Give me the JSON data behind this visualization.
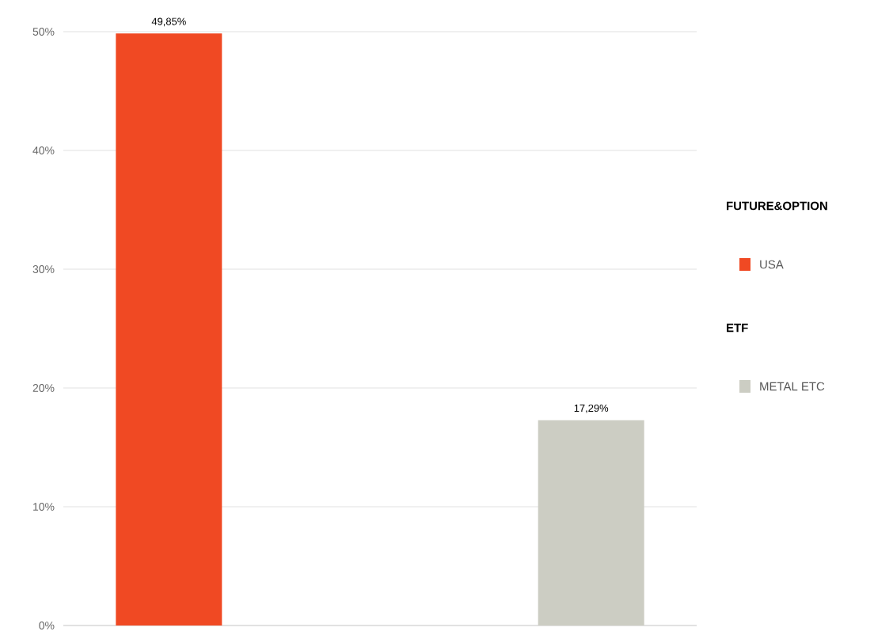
{
  "chart_data": {
    "type": "bar",
    "categories": [
      null,
      null
    ],
    "series": [
      {
        "name": "USA",
        "color": "#f04923",
        "values": [
          49.85,
          null
        ],
        "value_labels": [
          "49,85%",
          null
        ]
      },
      {
        "name": "METAL ETC",
        "color": "#cccdc3",
        "values": [
          null,
          17.29
        ],
        "value_labels": [
          null,
          "17,29%"
        ]
      }
    ],
    "annotations": [
      "FUTURE&OPTION",
      "ETF"
    ],
    "ylim": [
      0,
      50
    ],
    "yticks": [
      {
        "value": 0,
        "label": "0%"
      },
      {
        "value": 10,
        "label": "10%"
      },
      {
        "value": 20,
        "label": "20%"
      },
      {
        "value": 30,
        "label": "30%"
      },
      {
        "value": 40,
        "label": "40%"
      },
      {
        "value": 50,
        "label": "50%"
      }
    ],
    "grid": "y",
    "legend": "right"
  }
}
